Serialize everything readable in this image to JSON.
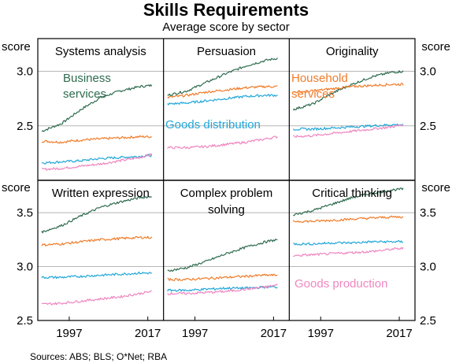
{
  "chart_data": {
    "type": "line",
    "title": "Skills Requirements",
    "subtitle": "Average score by sector",
    "source": "Sources:  ABS; BLS; O*Net; RBA",
    "unit_label": "score",
    "xticks": [
      "1997",
      "2017"
    ],
    "xlim": [
      1989,
      2021
    ],
    "series_colors": {
      "Business services": "#2e6b4e",
      "Household services": "#f07c2a",
      "Goods distribution": "#22a7d8",
      "Goods production": "#ef86c0"
    },
    "grid": true,
    "rows": [
      {
        "ylim": [
          2.0,
          3.3
        ],
        "yticks": [
          "3.0",
          "2.5"
        ],
        "ytick_values": [
          3.0,
          2.5
        ]
      },
      {
        "ylim": [
          2.5,
          3.8
        ],
        "yticks": [
          "3.5",
          "3.0",
          "2.5"
        ],
        "ytick_values": [
          3.5,
          3.0,
          2.5
        ]
      }
    ],
    "panels": [
      {
        "title": "Systems analysis",
        "annotations": [
          {
            "series": "Business services",
            "text": [
              "Business",
              "services"
            ]
          }
        ],
        "series": [
          {
            "name": "Business services",
            "x": [
              1990,
              1995,
              2000,
              2005,
              2010,
              2015,
              2018
            ],
            "values": [
              2.45,
              2.52,
              2.65,
              2.76,
              2.82,
              2.86,
              2.87
            ]
          },
          {
            "name": "Household services",
            "x": [
              1990,
              1995,
              2000,
              2005,
              2010,
              2015,
              2018
            ],
            "values": [
              2.36,
              2.35,
              2.37,
              2.38,
              2.39,
              2.4,
              2.4
            ]
          },
          {
            "name": "Goods distribution",
            "x": [
              1990,
              1995,
              2000,
              2005,
              2010,
              2015,
              2018
            ],
            "values": [
              2.16,
              2.17,
              2.18,
              2.2,
              2.21,
              2.22,
              2.23
            ]
          },
          {
            "name": "Goods production",
            "x": [
              1990,
              1995,
              2000,
              2005,
              2010,
              2015,
              2018
            ],
            "values": [
              2.1,
              2.11,
              2.13,
              2.15,
              2.18,
              2.21,
              2.24
            ]
          }
        ]
      },
      {
        "title": "Persuasion",
        "annotations": [
          {
            "series": "Goods distribution",
            "text": [
              "Goods distribution"
            ]
          }
        ],
        "series": [
          {
            "name": "Business services",
            "x": [
              1990,
              1995,
              2000,
              2005,
              2010,
              2015,
              2018
            ],
            "values": [
              2.78,
              2.82,
              2.9,
              2.98,
              3.05,
              3.1,
              3.12
            ]
          },
          {
            "name": "Household services",
            "x": [
              1990,
              1995,
              2000,
              2005,
              2010,
              2015,
              2018
            ],
            "values": [
              2.76,
              2.78,
              2.81,
              2.83,
              2.85,
              2.86,
              2.86
            ]
          },
          {
            "name": "Goods distribution",
            "x": [
              1990,
              1995,
              2000,
              2005,
              2010,
              2015,
              2018
            ],
            "values": [
              2.7,
              2.71,
              2.73,
              2.75,
              2.77,
              2.78,
              2.78
            ]
          },
          {
            "name": "Goods production",
            "x": [
              1990,
              1995,
              2000,
              2005,
              2010,
              2015,
              2018
            ],
            "values": [
              2.3,
              2.3,
              2.31,
              2.33,
              2.35,
              2.38,
              2.4
            ]
          }
        ]
      },
      {
        "title": "Originality",
        "annotations": [
          {
            "series": "Household services",
            "text": [
              "Household",
              "services"
            ]
          }
        ],
        "series": [
          {
            "name": "Business services",
            "x": [
              1990,
              1995,
              2000,
              2005,
              2010,
              2015,
              2018
            ],
            "values": [
              2.65,
              2.7,
              2.8,
              2.88,
              2.95,
              2.99,
              3.0
            ]
          },
          {
            "name": "Household services",
            "x": [
              1990,
              1995,
              2000,
              2005,
              2010,
              2015,
              2018
            ],
            "values": [
              2.81,
              2.82,
              2.84,
              2.86,
              2.87,
              2.88,
              2.88
            ]
          },
          {
            "name": "Goods distribution",
            "x": [
              1990,
              1995,
              2000,
              2005,
              2010,
              2015,
              2018
            ],
            "values": [
              2.47,
              2.47,
              2.48,
              2.49,
              2.5,
              2.51,
              2.51
            ]
          },
          {
            "name": "Goods production",
            "x": [
              1990,
              1995,
              2000,
              2005,
              2010,
              2015,
              2018
            ],
            "values": [
              2.4,
              2.41,
              2.43,
              2.45,
              2.47,
              2.49,
              2.51
            ]
          }
        ]
      },
      {
        "title": "Written expression",
        "annotations": [],
        "series": [
          {
            "name": "Business services",
            "x": [
              1990,
              1995,
              2000,
              2005,
              2010,
              2015,
              2018
            ],
            "values": [
              3.32,
              3.38,
              3.47,
              3.55,
              3.6,
              3.64,
              3.65
            ]
          },
          {
            "name": "Household services",
            "x": [
              1990,
              1995,
              2000,
              2005,
              2010,
              2015,
              2018
            ],
            "values": [
              3.2,
              3.21,
              3.23,
              3.25,
              3.26,
              3.27,
              3.27
            ]
          },
          {
            "name": "Goods distribution",
            "x": [
              1990,
              1995,
              2000,
              2005,
              2010,
              2015,
              2018
            ],
            "values": [
              2.9,
              2.9,
              2.91,
              2.92,
              2.93,
              2.94,
              2.94
            ]
          },
          {
            "name": "Goods production",
            "x": [
              1990,
              1995,
              2000,
              2005,
              2010,
              2015,
              2018
            ],
            "values": [
              2.65,
              2.66,
              2.68,
              2.7,
              2.72,
              2.75,
              2.77
            ]
          }
        ]
      },
      {
        "title": [
          "Complex problem",
          "solving"
        ],
        "annotations": [],
        "series": [
          {
            "name": "Business services",
            "x": [
              1990,
              1995,
              2000,
              2005,
              2010,
              2015,
              2018
            ],
            "values": [
              2.96,
              2.99,
              3.05,
              3.12,
              3.18,
              3.23,
              3.25
            ]
          },
          {
            "name": "Household services",
            "x": [
              1990,
              1995,
              2000,
              2005,
              2010,
              2015,
              2018
            ],
            "values": [
              2.88,
              2.88,
              2.89,
              2.9,
              2.91,
              2.92,
              2.92
            ]
          },
          {
            "name": "Goods distribution",
            "x": [
              1990,
              1995,
              2000,
              2005,
              2010,
              2015,
              2018
            ],
            "values": [
              2.78,
              2.78,
              2.79,
              2.8,
              2.8,
              2.81,
              2.81
            ]
          },
          {
            "name": "Goods production",
            "x": [
              1990,
              1995,
              2000,
              2005,
              2010,
              2015,
              2018
            ],
            "values": [
              2.75,
              2.75,
              2.76,
              2.77,
              2.79,
              2.81,
              2.83
            ]
          }
        ]
      },
      {
        "title": "Critical thinking",
        "annotations": [
          {
            "series": "Goods production",
            "text": [
              "Goods production"
            ]
          }
        ],
        "series": [
          {
            "name": "Business services",
            "x": [
              1990,
              1995,
              2000,
              2005,
              2010,
              2015,
              2018
            ],
            "values": [
              3.48,
              3.52,
              3.58,
              3.64,
              3.68,
              3.71,
              3.72
            ]
          },
          {
            "name": "Household services",
            "x": [
              1990,
              1995,
              2000,
              2005,
              2010,
              2015,
              2018
            ],
            "values": [
              3.42,
              3.42,
              3.43,
              3.44,
              3.45,
              3.46,
              3.46
            ]
          },
          {
            "name": "Goods distribution",
            "x": [
              1990,
              1995,
              2000,
              2005,
              2010,
              2015,
              2018
            ],
            "values": [
              3.21,
              3.21,
              3.22,
              3.22,
              3.23,
              3.23,
              3.23
            ]
          },
          {
            "name": "Goods production",
            "x": [
              1990,
              1995,
              2000,
              2005,
              2010,
              2015,
              2018
            ],
            "values": [
              3.1,
              3.11,
              3.12,
              3.13,
              3.14,
              3.16,
              3.17
            ]
          }
        ]
      }
    ]
  }
}
